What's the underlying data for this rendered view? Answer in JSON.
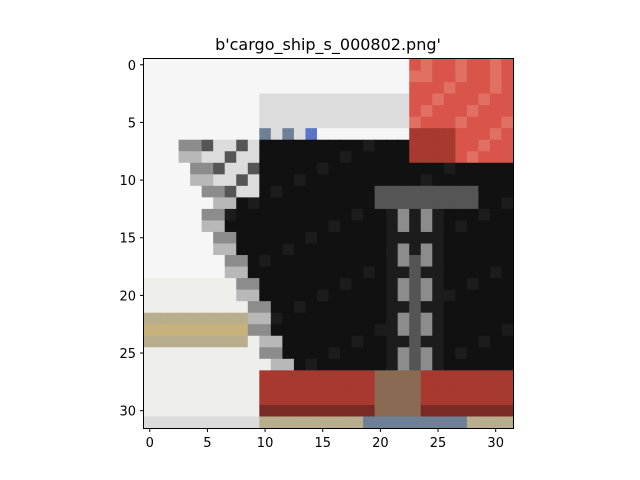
{
  "title": "b'cargo_ship_s_000802.png'",
  "image": {
    "subject": "cargo ship",
    "grid_size": 32,
    "description": "Low-resolution pixelated image of a dark cargo ship hull with a red upper structure, red waterline band and a light background."
  },
  "x_ticks": [
    {
      "value": 0,
      "label": "0"
    },
    {
      "value": 5,
      "label": "5"
    },
    {
      "value": 10,
      "label": "10"
    },
    {
      "value": 15,
      "label": "15"
    },
    {
      "value": 20,
      "label": "20"
    },
    {
      "value": 25,
      "label": "25"
    },
    {
      "value": 30,
      "label": "30"
    }
  ],
  "y_ticks": [
    {
      "value": 0,
      "label": "0"
    },
    {
      "value": 5,
      "label": "5"
    },
    {
      "value": 10,
      "label": "10"
    },
    {
      "value": 15,
      "label": "15"
    },
    {
      "value": 20,
      "label": "20"
    },
    {
      "value": 25,
      "label": "25"
    },
    {
      "value": 30,
      "label": "30"
    }
  ]
}
